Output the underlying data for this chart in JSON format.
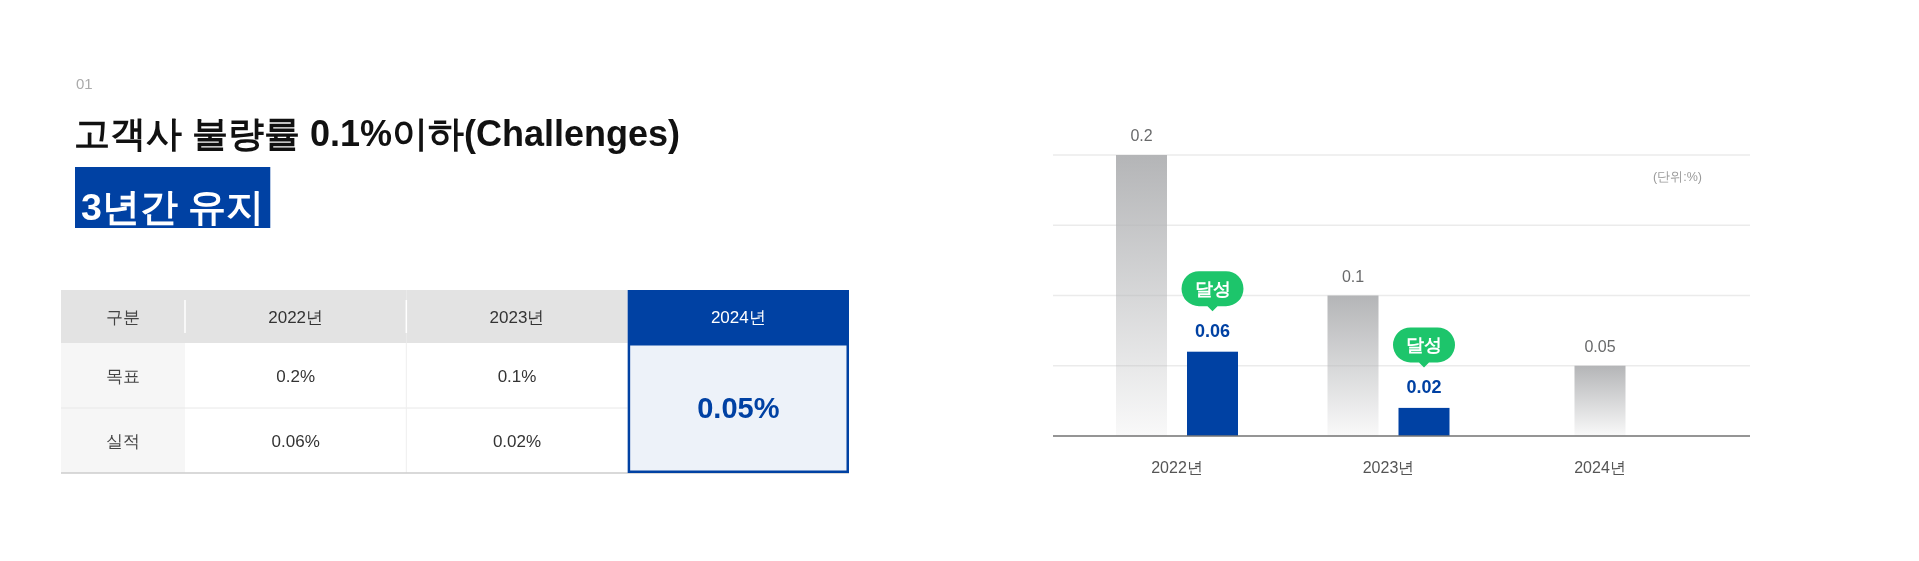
{
  "chart_data": [
    {
      "type": "other",
      "title": "고객사 불량률 0.1%이하(Challenges)",
      "subtitle": "3년간 유지",
      "annotations": [
        "01"
      ],
      "ylabel": "구분",
      "categories": [
        "2022년",
        "2023년",
        "2024년"
      ],
      "y_categories": [
        "목표",
        "실적"
      ],
      "cell_labels": [
        [
          "0.2%",
          "0.1%",
          "0.05%"
        ],
        [
          "0.06%",
          "0.02%",
          null
        ]
      ],
      "colors": [
        "#e3e3e3",
        "#e3e3e3",
        "#0041a3"
      ]
    },
    {
      "type": "bar",
      "categories": [
        "2022년",
        "2023년",
        "2024년"
      ],
      "series": [
        {
          "color": "#b4b5b7",
          "values": [
            0.2,
            0.1,
            0.05
          ]
        },
        {
          "color": "#0041a3",
          "values": [
            0.06,
            0.02,
            null
          ]
        }
      ],
      "ylim": [
        0,
        0.2
      ],
      "yticks": [
        {
          "value": 0,
          "label": null
        },
        {
          "value": 0.05,
          "label": null
        },
        {
          "value": 0.1,
          "label": null
        },
        {
          "value": 0.15,
          "label": null
        },
        {
          "value": 0.2,
          "label": null
        }
      ],
      "tick_labels": "x",
      "grid": "y",
      "data_labels": true,
      "ylabel": "(단위:%)",
      "annotations": [
        "달성",
        "달성"
      ]
    }
  ]
}
